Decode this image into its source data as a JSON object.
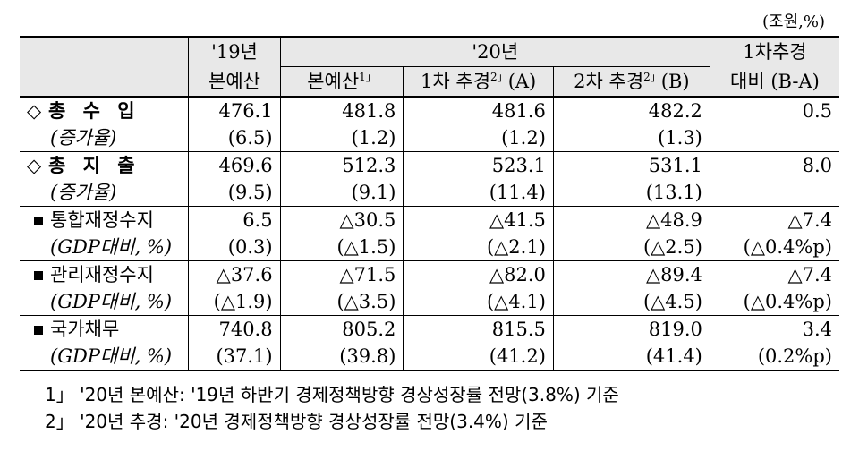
{
  "unit": "(조원,%)",
  "header": {
    "col_19": [
      "'19년",
      "본예산"
    ],
    "col_20": "'20년",
    "col_20_sub": [
      {
        "label": "본예산",
        "sup": "1」",
        "suffix": ""
      },
      {
        "label": "1차 추경",
        "sup": "2」",
        "suffix": "(A)"
      },
      {
        "label": "2차 추경",
        "sup": "2」",
        "suffix": "(B)"
      }
    ],
    "col_diff": [
      "1차추경",
      "대비 (B-A)"
    ]
  },
  "rows": [
    {
      "label": "총 수 입",
      "marker": "◇",
      "values": [
        "476.1",
        "481.8",
        "481.6",
        "482.2",
        "0.5"
      ]
    },
    {
      "label": "(증가율)",
      "values": [
        "(6.5)",
        "(1.2)",
        "(1.2)",
        "(1.3)",
        ""
      ]
    },
    {
      "label": "총 지 출",
      "marker": "◇",
      "values": [
        "469.6",
        "512.3",
        "523.1",
        "531.1",
        "8.0"
      ]
    },
    {
      "label": "(증가율)",
      "values": [
        "(9.5)",
        "(9.1)",
        "(11.4)",
        "(13.1)",
        ""
      ]
    },
    {
      "label": "통합재정수지",
      "values": [
        "6.5",
        "△30.5",
        "△41.5",
        "△48.9",
        "△7.4"
      ]
    },
    {
      "label": "(GDP대비, %)",
      "values": [
        "(0.3)",
        "(△1.5)",
        "(△2.1)",
        "(△2.5)",
        "(△0.4%p)"
      ]
    },
    {
      "label": "관리재정수지",
      "values": [
        "△37.6",
        "△71.5",
        "△82.0",
        "△89.4",
        "△7.4"
      ]
    },
    {
      "label": "(GDP대비, %)",
      "values": [
        "(△1.9)",
        "(△3.5)",
        "(△4.1)",
        "(△4.5)",
        "(△0.4%p)"
      ]
    },
    {
      "label": "국가채무",
      "values": [
        "740.8",
        "805.2",
        "815.5",
        "819.0",
        "3.4"
      ]
    },
    {
      "label": "(GDP대비, %)",
      "values": [
        "(37.1)",
        "(39.8)",
        "(41.2)",
        "(41.4)",
        "(0.2%p)"
      ]
    }
  ],
  "footnotes": [
    "1」 '20년 본예산: '19년 하반기 경제정책방향 경상성장률 전망(3.8%) 기준",
    "2」 '20년 추경: '20년 경제정책방향 경상성장률 전망(3.4%) 기준"
  ]
}
